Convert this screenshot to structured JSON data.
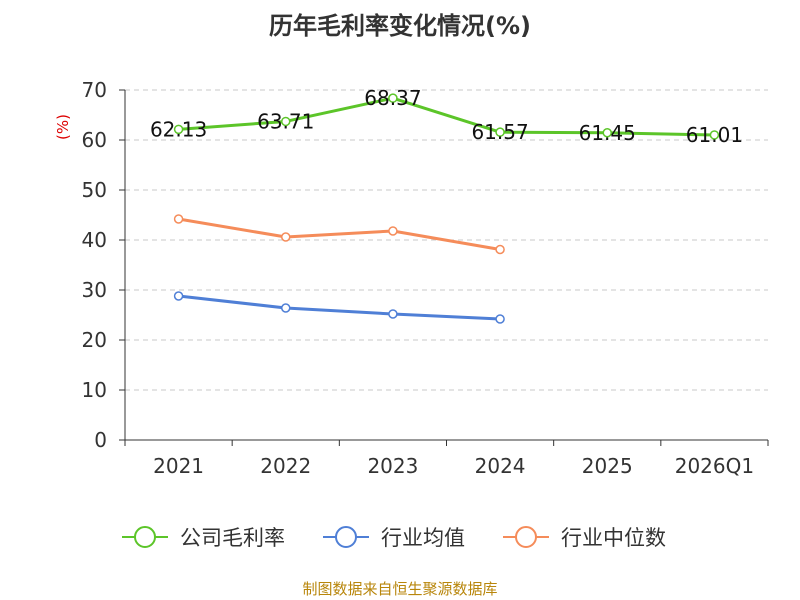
{
  "title": "历年毛利率变化情况(%)",
  "source": "制图数据来自恒生聚源数据库",
  "colors": {
    "gross_margin": "#5cc529",
    "industry_avg": "#4f7fd6",
    "industry_median": "#f58c5a",
    "unit_label": "#dd0000",
    "axis": "#333333",
    "grid": "#c8c8c8"
  },
  "chart_data": {
    "type": "line",
    "title": "历年毛利率变化情况(%)",
    "ylabel": "(%)",
    "xlabel": "",
    "categories": [
      "2021",
      "2022",
      "2023",
      "2024",
      "2025",
      "2026Q1"
    ],
    "ylim": [
      0,
      70
    ],
    "yticks": [
      0,
      10,
      20,
      30,
      40,
      50,
      60,
      70
    ],
    "grid": true,
    "legend_position": "bottom",
    "series": [
      {
        "key": "gross_margin",
        "name": "公司毛利率",
        "values": [
          62.13,
          63.71,
          68.37,
          61.57,
          61.45,
          61.01
        ],
        "labels": [
          "62.13",
          "63.71",
          "68.37",
          "61.57",
          "61.45",
          "61.01"
        ]
      },
      {
        "key": "industry_avg",
        "name": "行业均值",
        "values": [
          28.8,
          26.4,
          25.2,
          24.2,
          null,
          null
        ]
      },
      {
        "key": "industry_median",
        "name": "行业中位数",
        "values": [
          44.2,
          40.6,
          41.8,
          38.1,
          null,
          null
        ]
      }
    ]
  }
}
